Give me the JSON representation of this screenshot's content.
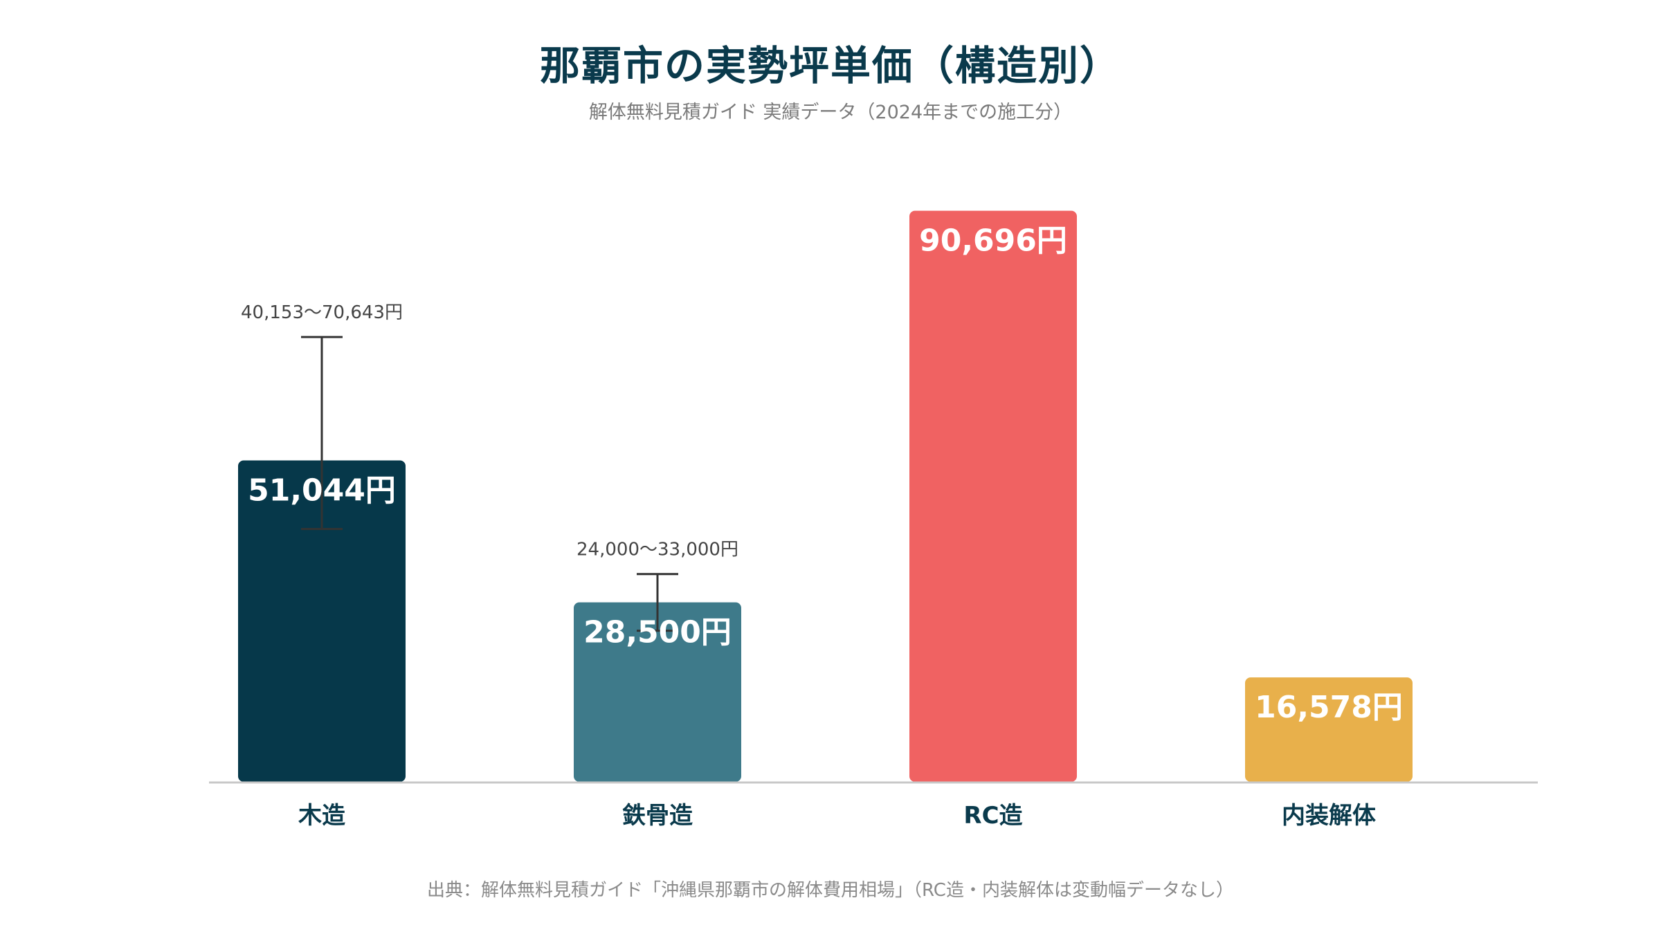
{
  "title": "那覇市の実勢坪単価（構造別）",
  "subtitle": "解体無料見積ガイド 実績データ（2024年までの施工分）",
  "source": "出典：解体無料見積ガイド「沖縄県那覇市の解体費用相場」（RC造・内装解体は変動幅データなし）",
  "chart_data": {
    "type": "bar",
    "categories": [
      "木造",
      "鉄骨造",
      "RC造",
      "内装解体"
    ],
    "values": [
      51044,
      28500,
      90696,
      16578
    ],
    "value_labels": [
      "51,044円",
      "28,500円",
      "90,696円",
      "16,578円"
    ],
    "colors": [
      "#06384a",
      "#3e7a8a",
      "#f06262",
      "#e8b04b"
    ],
    "ranges": [
      {
        "low": 40153,
        "high": 70643,
        "label": "40,153〜70,643円"
      },
      {
        "low": 24000,
        "high": 33000,
        "label": "24,000〜33,000円"
      },
      null,
      null
    ],
    "ylim": [
      0,
      95000
    ],
    "grid": false,
    "legend": "none"
  }
}
